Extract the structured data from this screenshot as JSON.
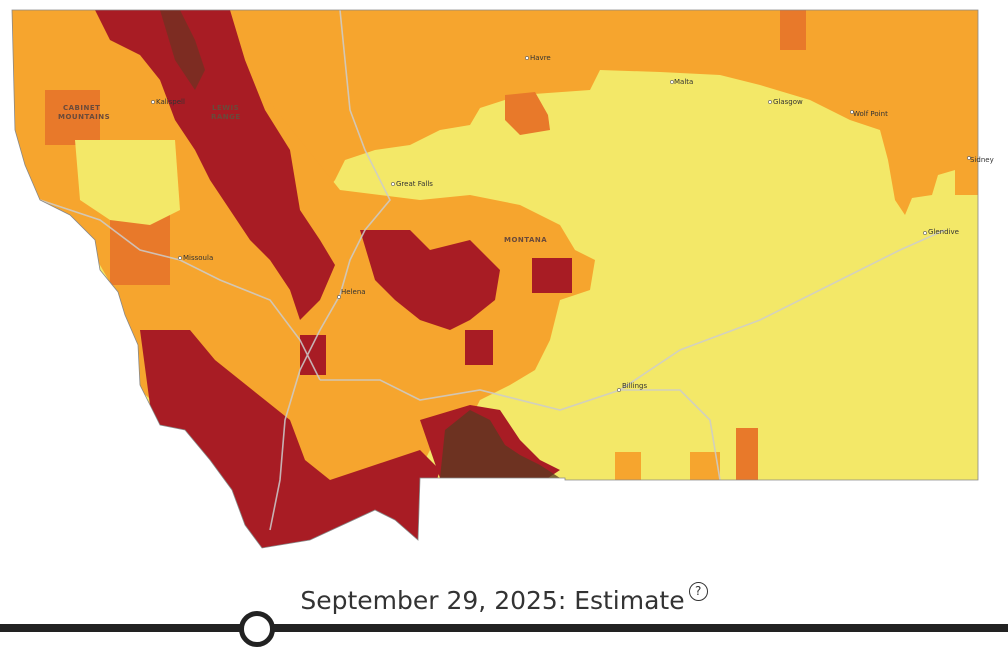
{
  "map": {
    "colors": {
      "severe": "#a81c24",
      "high": "#e8792a",
      "moderate": "#f6a52e",
      "low": "#f3e868",
      "rock": "#5a3a20",
      "road": "#cccccc"
    },
    "cities": {
      "kalispell": "Kalispell",
      "missoula": "Missoula",
      "helena": "Helena",
      "great_falls": "Great Falls",
      "havre": "Havre",
      "malta": "Malta",
      "glasgow": "Glasgow",
      "wolf_point": "Wolf Point",
      "sidney": "Sidney",
      "glendive": "Glendive",
      "billings": "Billings"
    },
    "regions": {
      "cabinet_1": "CABINET",
      "cabinet_2": "MOUNTAINS",
      "lewis_1": "LEWIS",
      "lewis_2": "RANGE",
      "montana": "MONTANA"
    }
  },
  "timeline": {
    "date_label": "September 29, 2025: Estimate",
    "help_icon": "question-circle-icon",
    "position_fraction": 0.255
  }
}
